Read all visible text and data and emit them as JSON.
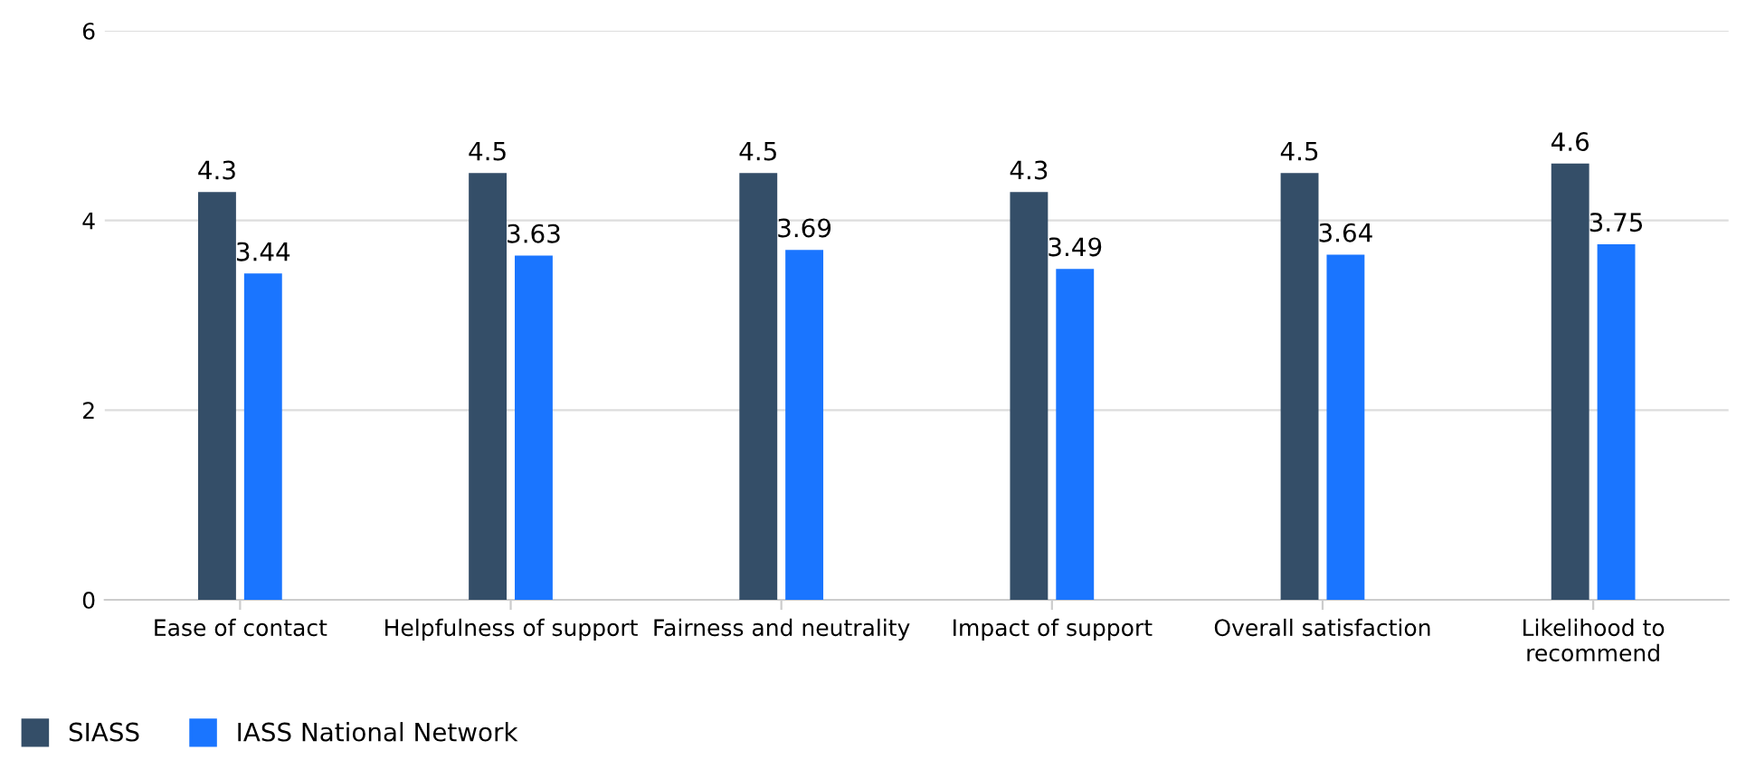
{
  "chart_data": {
    "type": "bar",
    "categories": [
      "Ease of contact",
      "Helpfulness of support",
      "Fairness and neutrality",
      "Impact of support",
      "Overall satisfaction",
      "Likelihood to\nrecommend"
    ],
    "series": [
      {
        "name": "SIASS",
        "color": "#344e68",
        "values": [
          4.3,
          4.5,
          4.5,
          4.3,
          4.5,
          4.6
        ]
      },
      {
        "name": "IASS National Network",
        "color": "#1a75ff",
        "values": [
          3.44,
          3.63,
          3.69,
          3.49,
          3.64,
          3.75
        ]
      }
    ],
    "ylim": [
      0,
      6
    ],
    "yticks": [
      0,
      2,
      4,
      6
    ],
    "grid": "y",
    "legend": "bottom left",
    "data_labels": true
  }
}
